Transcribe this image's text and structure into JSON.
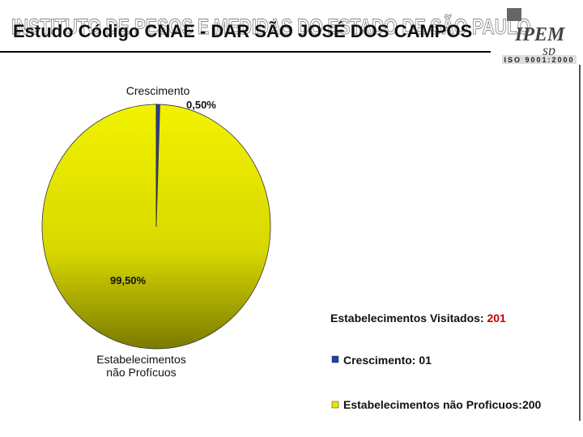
{
  "header": {
    "institution": "INSTITUTO DE PESOS E MEDIDAS DO ESTADO DE SÃO PAULO",
    "title": "Estudo Código CNAE - DAR SÃO JOSÉ DOS CAMPOS",
    "logo": {
      "name": "IPEM",
      "state": "sp",
      "certification": "ISO 9001:2000"
    }
  },
  "chart_data": {
    "type": "pie",
    "categories": [
      "Crescimento",
      "Estabelecimentos\nnão Profícuos"
    ],
    "values": [
      0.5,
      99.5
    ],
    "value_labels": [
      "0,50%",
      "99,50%"
    ],
    "colors": [
      "#1f3fa8",
      "#e6e600"
    ]
  },
  "summary": {
    "visited_label": "Estabelecimentos Visitados:",
    "visited_value": "201",
    "items": [
      "Crescimento: 01",
      "Estabelecimentos não Proficuos:200"
    ]
  }
}
